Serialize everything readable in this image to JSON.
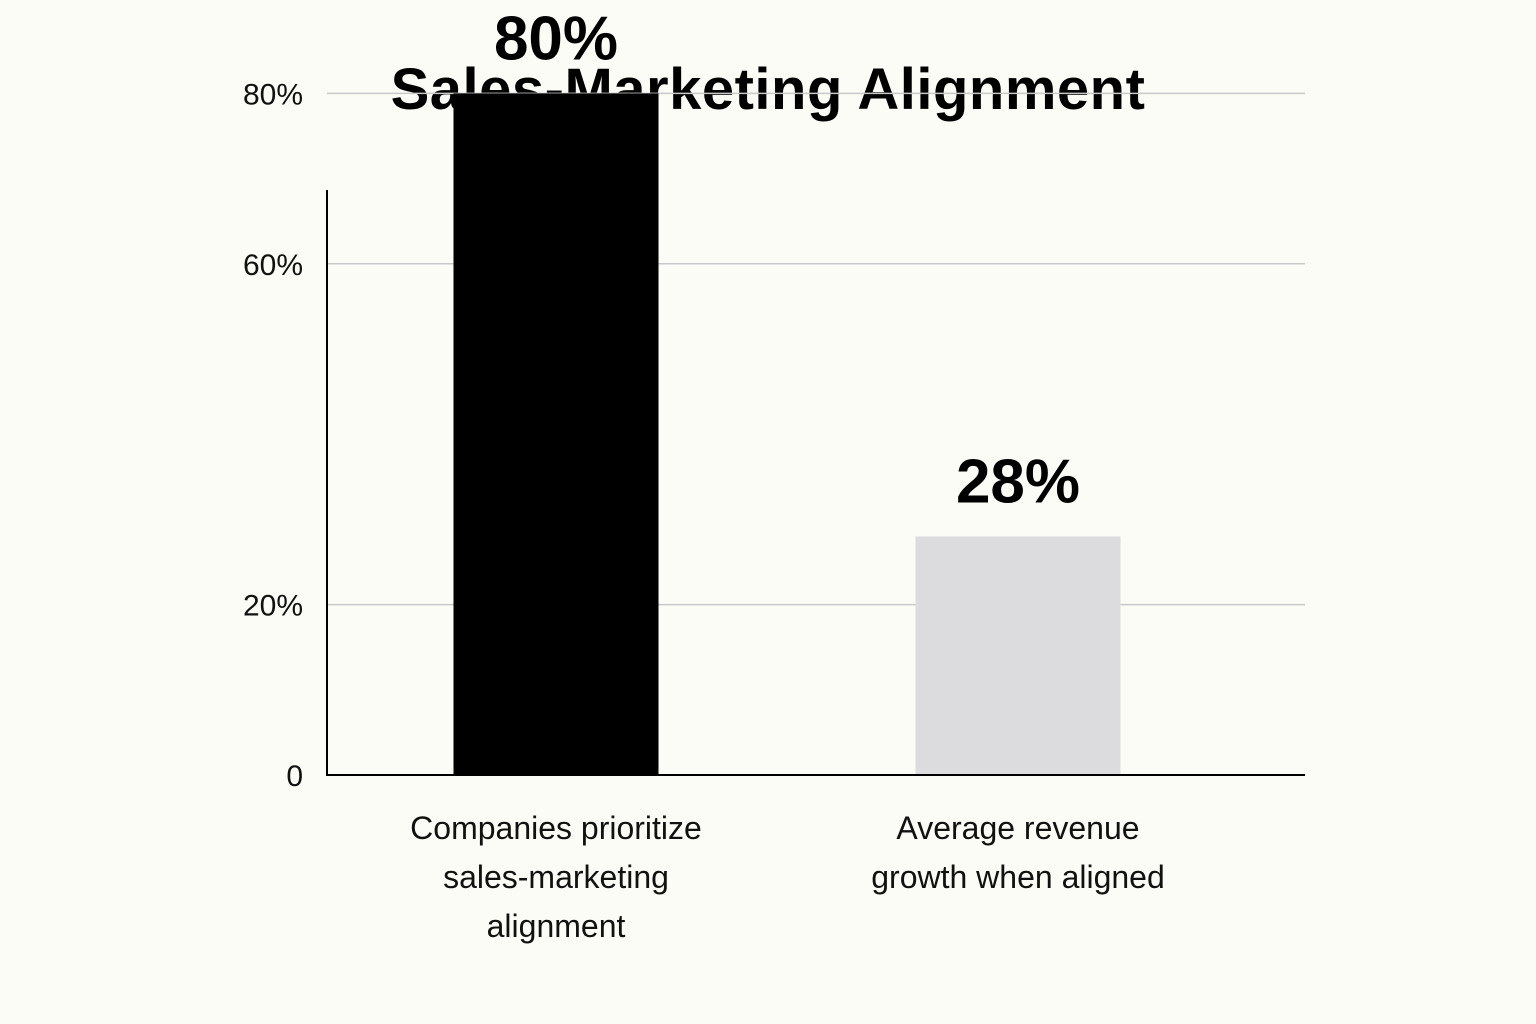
{
  "chart_data": {
    "type": "bar",
    "title": "Sales-Marketing Alignment",
    "xlabel": "",
    "ylabel": "",
    "categories": [
      [
        "Companies prioritize",
        "sales-marketing",
        "alignment"
      ],
      [
        "Average revenue",
        "growth when aligned"
      ]
    ],
    "values": [
      80,
      28
    ],
    "value_labels": [
      "80%",
      "28%"
    ],
    "bar_colors": [
      "#000000",
      "#dcdcdf"
    ],
    "y_ticks": [
      {
        "value": 0,
        "label": "0"
      },
      {
        "value": 20,
        "label": "20%"
      },
      {
        "value": 60,
        "label": "60%"
      },
      {
        "value": 80,
        "label": "80%"
      }
    ],
    "grid": true
  }
}
